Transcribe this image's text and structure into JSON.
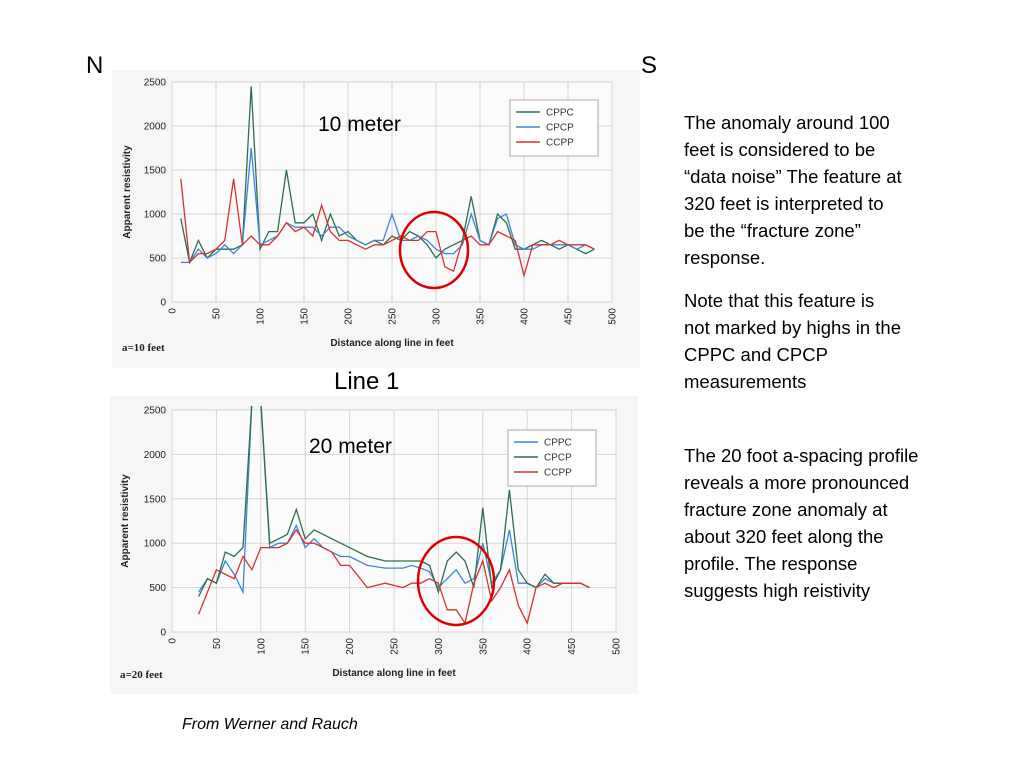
{
  "compass": {
    "north": "N",
    "south": "S"
  },
  "line_label": "Line 1",
  "notes": {
    "p1": [
      "The anomaly around 100",
      "feet is considered to be",
      "“data noise” The feature at",
      "320 feet is interpreted to",
      "be the “fracture zone”",
      "response."
    ],
    "p2": [
      "Note that this feature is",
      "not marked by highs in the",
      "CPPC and CPCP",
      "measurements"
    ],
    "p3": [
      "The 20 foot a-spacing profile",
      "reveals a more pronounced",
      "fracture zone anomaly at",
      "about 320 feet along the",
      "profile. The response",
      "suggests high reistivity"
    ]
  },
  "credit": "From Werner and Rauch",
  "colors": {
    "CPPC": "#2e6e4c",
    "CPCP": "#3a86d6",
    "CCPP": "#d83030",
    "circle": "#dd0000"
  },
  "chart_data": [
    {
      "type": "line",
      "title": "10 meter",
      "spacing_label": "a=10 feet",
      "xlabel": "Distance along line in feet",
      "ylabel": "Apparent resistivity",
      "xlim": [
        0,
        500
      ],
      "ylim": [
        0,
        2500
      ],
      "xticks": [
        0,
        50,
        100,
        150,
        200,
        250,
        300,
        350,
        400,
        450,
        500
      ],
      "yticks": [
        0,
        500,
        1000,
        1500,
        2000,
        2500
      ],
      "grid": true,
      "legend_position": "top-right",
      "annotation": "circle around 320 feet",
      "series": [
        {
          "name": "CPPC",
          "color": "#2e6e4c",
          "x": [
            10,
            20,
            30,
            40,
            50,
            60,
            70,
            80,
            90,
            100,
            110,
            120,
            130,
            140,
            150,
            160,
            170,
            180,
            190,
            200,
            210,
            220,
            230,
            240,
            250,
            260,
            270,
            280,
            290,
            300,
            310,
            320,
            330,
            340,
            350,
            360,
            370,
            380,
            390,
            400,
            410,
            420,
            430,
            440,
            450,
            460,
            470,
            480
          ],
          "y": [
            950,
            450,
            700,
            500,
            600,
            600,
            600,
            650,
            2450,
            600,
            800,
            800,
            1500,
            900,
            900,
            1000,
            700,
            1000,
            750,
            800,
            700,
            650,
            700,
            650,
            750,
            700,
            800,
            750,
            650,
            500,
            600,
            650,
            700,
            1200,
            700,
            650,
            1000,
            900,
            600,
            600,
            650,
            700,
            650,
            600,
            650,
            600,
            550,
            600
          ]
        },
        {
          "name": "CPCP",
          "color": "#3a86d6",
          "x": [
            10,
            20,
            30,
            40,
            50,
            60,
            70,
            80,
            90,
            100,
            110,
            120,
            130,
            140,
            150,
            160,
            170,
            180,
            190,
            200,
            210,
            220,
            230,
            240,
            250,
            260,
            270,
            280,
            290,
            300,
            310,
            320,
            330,
            340,
            350,
            360,
            370,
            380,
            390,
            400,
            410,
            420,
            430,
            440,
            450,
            460,
            470,
            480
          ],
          "y": [
            450,
            450,
            600,
            500,
            550,
            650,
            550,
            650,
            1750,
            650,
            700,
            750,
            900,
            850,
            850,
            850,
            750,
            850,
            850,
            750,
            700,
            650,
            700,
            700,
            1000,
            700,
            700,
            750,
            700,
            600,
            550,
            550,
            650,
            1000,
            700,
            650,
            950,
            1000,
            650,
            600,
            600,
            650,
            650,
            650,
            650,
            600,
            650,
            600
          ]
        },
        {
          "name": "CCPP",
          "color": "#d83030",
          "x": [
            10,
            20,
            30,
            40,
            50,
            60,
            70,
            80,
            90,
            100,
            110,
            120,
            130,
            140,
            150,
            160,
            170,
            180,
            190,
            200,
            210,
            220,
            230,
            240,
            250,
            260,
            270,
            280,
            290,
            300,
            310,
            320,
            330,
            340,
            350,
            360,
            370,
            380,
            390,
            400,
            410,
            420,
            430,
            440,
            450,
            460,
            470,
            480
          ],
          "y": [
            1400,
            450,
            550,
            550,
            600,
            700,
            1400,
            650,
            750,
            650,
            650,
            750,
            900,
            800,
            850,
            750,
            1100,
            800,
            700,
            700,
            650,
            600,
            650,
            650,
            700,
            750,
            700,
            700,
            800,
            800,
            400,
            350,
            700,
            750,
            650,
            650,
            800,
            750,
            700,
            300,
            650,
            650,
            650,
            700,
            650,
            650,
            650,
            600
          ]
        }
      ]
    },
    {
      "type": "line",
      "title": "20 meter",
      "spacing_label": "a=20 feet",
      "xlabel": "Distance along line in feet",
      "ylabel": "Apparent resistivity",
      "xlim": [
        0,
        500
      ],
      "ylim": [
        0,
        2500
      ],
      "xticks": [
        0,
        50,
        100,
        150,
        200,
        250,
        300,
        350,
        400,
        450,
        500
      ],
      "yticks": [
        0,
        500,
        1000,
        1500,
        2000,
        2500
      ],
      "grid": true,
      "legend_position": "top-right",
      "annotation": "circle around 320 feet",
      "series": [
        {
          "name": "CPPC",
          "color": "#3a86d6",
          "x": [
            30,
            40,
            50,
            60,
            70,
            80,
            90,
            100,
            110,
            120,
            130,
            140,
            150,
            160,
            170,
            180,
            190,
            200,
            220,
            240,
            260,
            270,
            280,
            290,
            300,
            310,
            320,
            330,
            340,
            350,
            360,
            370,
            380,
            390,
            400,
            410,
            420,
            430,
            440,
            450,
            460,
            470
          ],
          "y": [
            450,
            600,
            550,
            800,
            650,
            450,
            2600,
            2600,
            950,
            1000,
            1000,
            1200,
            950,
            1050,
            950,
            900,
            850,
            850,
            750,
            720,
            720,
            750,
            720,
            680,
            500,
            600,
            700,
            550,
            600,
            1000,
            550,
            700,
            1150,
            550,
            550,
            500,
            600,
            550,
            550,
            550,
            550,
            500
          ]
        },
        {
          "name": "CPCP",
          "color": "#2e6e4c",
          "x": [
            30,
            40,
            50,
            60,
            70,
            80,
            90,
            100,
            110,
            120,
            130,
            140,
            150,
            160,
            170,
            180,
            190,
            200,
            220,
            240,
            260,
            270,
            280,
            290,
            300,
            310,
            320,
            330,
            340,
            350,
            360,
            370,
            380,
            390,
            400,
            410,
            420,
            430,
            440,
            450,
            460,
            470
          ],
          "y": [
            400,
            600,
            550,
            900,
            850,
            950,
            2600,
            2600,
            1000,
            1050,
            1100,
            1380,
            1050,
            1150,
            1100,
            1050,
            1000,
            950,
            850,
            800,
            800,
            800,
            800,
            750,
            450,
            800,
            900,
            800,
            500,
            1400,
            500,
            700,
            1600,
            700,
            550,
            500,
            650,
            550,
            550,
            550,
            550,
            500
          ]
        },
        {
          "name": "CCPP",
          "color": "#d83030",
          "x": [
            30,
            40,
            50,
            60,
            70,
            80,
            90,
            100,
            110,
            120,
            130,
            140,
            150,
            160,
            170,
            180,
            190,
            200,
            220,
            240,
            260,
            270,
            280,
            290,
            300,
            310,
            320,
            330,
            340,
            350,
            360,
            370,
            380,
            390,
            400,
            410,
            420,
            430,
            440,
            450,
            460,
            470
          ],
          "y": [
            200,
            450,
            700,
            650,
            600,
            850,
            700,
            950,
            950,
            950,
            1000,
            1150,
            1000,
            1000,
            950,
            900,
            750,
            750,
            500,
            550,
            500,
            550,
            550,
            600,
            550,
            250,
            250,
            100,
            550,
            800,
            350,
            500,
            700,
            300,
            100,
            500,
            550,
            500,
            550,
            550,
            550,
            500
          ]
        }
      ]
    }
  ]
}
